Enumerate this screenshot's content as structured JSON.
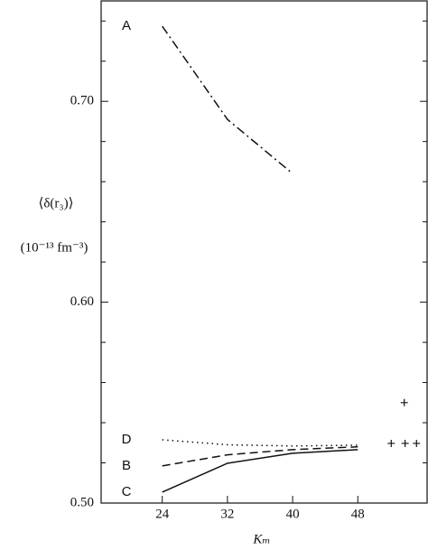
{
  "chart_data": {
    "type": "line",
    "y_label": "⟨δ(r₃)⟩",
    "y_unit": "(10⁻¹³ fm⁻³)",
    "x_label": "Kₘ",
    "x": [
      24,
      32,
      40,
      48
    ],
    "series": [
      {
        "name": "A",
        "color": "#111111",
        "style": "dashdot",
        "values": [
          0.7374,
          0.691,
          0.664,
          null
        ]
      },
      {
        "name": "D",
        "color": "#111111",
        "style": "dotted",
        "values": [
          0.5315,
          0.529,
          0.5284,
          0.5288
        ]
      },
      {
        "name": "B",
        "color": "#111111",
        "style": "dashed",
        "values": [
          0.5185,
          0.524,
          0.5266,
          0.528
        ]
      },
      {
        "name": "C",
        "color": "#111111",
        "style": "solid",
        "values": [
          0.5054,
          0.5198,
          0.5248,
          0.5266
        ]
      }
    ],
    "points": {
      "marker": "+",
      "x": [
        52.1,
        53.8,
        55.2,
        53.7
      ],
      "y": [
        0.5297,
        0.5297,
        0.5297,
        0.55
      ]
    },
    "xlim": [
      16.5,
      56.5
    ],
    "ylim": [
      0.5,
      0.75
    ],
    "xticks": [
      24,
      32,
      40,
      48
    ],
    "yticks": [
      {
        "value": 0.5,
        "label": "0.50"
      },
      {
        "value": 0.6,
        "label": "0.60"
      },
      {
        "value": 0.7,
        "label": "0.70"
      }
    ],
    "yminorticks": [
      0.52,
      0.54,
      0.56,
      0.58,
      0.62,
      0.64,
      0.66,
      0.68,
      0.72,
      0.74
    ]
  }
}
